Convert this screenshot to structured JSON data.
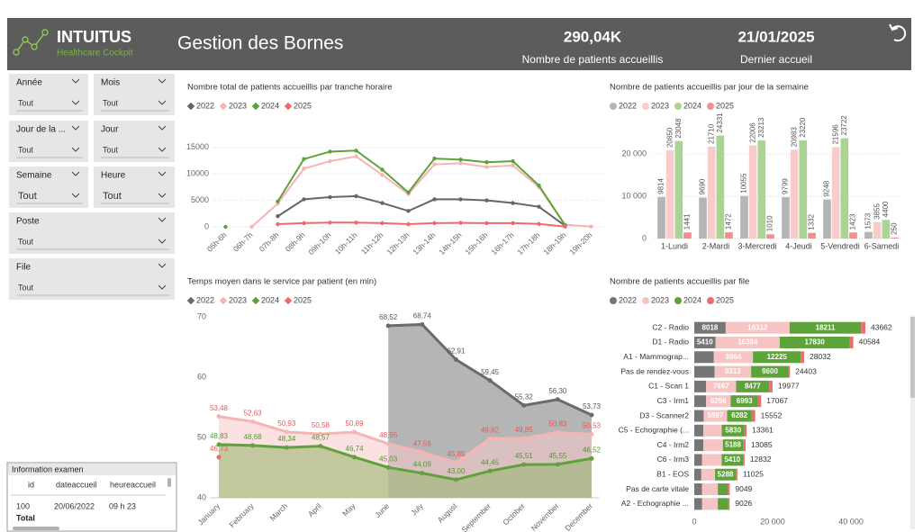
{
  "header": {
    "brand": "INTUITUS",
    "tagline": "Healthcare Cockpit",
    "title": "Gestion des Bornes",
    "kpis": [
      {
        "value": "290,04K",
        "label": "Nombre de patients accueillis"
      },
      {
        "value": "21/01/2025",
        "label": "Dernier accueil"
      }
    ]
  },
  "filters": [
    {
      "label": "Année",
      "value": "Tout"
    },
    {
      "label": "Mois",
      "value": "Tout"
    },
    {
      "label": "Jour de la ...",
      "value": "Tout"
    },
    {
      "label": "Jour",
      "value": "Tout"
    },
    {
      "label": "Semaine",
      "value": "Tout"
    },
    {
      "label": "Heure",
      "value": "Tout"
    },
    {
      "label": "Poste",
      "value": "Tout"
    },
    {
      "label": "File",
      "value": "Tout"
    }
  ],
  "table": {
    "title": "Information examen",
    "columns": [
      "id",
      "dateaccueil",
      "heureaccueil"
    ],
    "rows": [
      [
        "100",
        "20/06/2022",
        "09 h 23"
      ]
    ],
    "total": "Total"
  },
  "chart_data": [
    {
      "type": "line",
      "title": "Nombre total de patients accueillis par tranche horaire",
      "categories": [
        "05h-6h",
        "06h-7h",
        "07h-8h",
        "08h-9h",
        "09h-10h",
        "10h-11h",
        "11h-12h",
        "12h-13h",
        "13h-14h",
        "14h-15h",
        "15h-16h",
        "16h-17h",
        "17h-18h",
        "18h-19h",
        "19h-20h"
      ],
      "series": [
        {
          "name": "2022",
          "color": "#666666",
          "values": [
            null,
            null,
            2000,
            5200,
            5600,
            5800,
            4500,
            3000,
            5200,
            5200,
            5000,
            4500,
            3800,
            200,
            null
          ]
        },
        {
          "name": "2023",
          "color": "#f6b5b5",
          "values": [
            null,
            0,
            4400,
            11000,
            12400,
            13300,
            9800,
            6200,
            11800,
            12000,
            11300,
            11600,
            7500,
            400,
            50
          ]
        },
        {
          "name": "2024",
          "color": "#5ea33a",
          "values": [
            0,
            null,
            4800,
            12800,
            14200,
            14400,
            10800,
            6500,
            12900,
            12700,
            12200,
            12400,
            7800,
            300,
            null
          ]
        },
        {
          "name": "2025",
          "color": "#ee6a6a",
          "values": [
            null,
            null,
            500,
            700,
            800,
            800,
            700,
            500,
            700,
            750,
            700,
            700,
            550,
            50,
            null
          ]
        }
      ],
      "ylim": [
        0,
        17000
      ],
      "yticks": [
        0,
        5000,
        10000,
        15000
      ],
      "grid": true
    },
    {
      "type": "column",
      "title": "Nombre de patients accueillis par jour de la semaine",
      "categories": [
        "1-Lundi",
        "2-Mardi",
        "3-Mercredi",
        "4-Jeudi",
        "5-Vendredi",
        "6-Samedi"
      ],
      "series": [
        {
          "name": "2022",
          "color": "#b5b5b5",
          "values": [
            9814,
            9690,
            10055,
            9799,
            9248,
            1573
          ]
        },
        {
          "name": "2023",
          "color": "#f9cccc",
          "values": [
            20850,
            21710,
            22006,
            20983,
            21596,
            3855
          ]
        },
        {
          "name": "2024",
          "color": "#a9d493",
          "values": [
            23048,
            24331,
            23213,
            23220,
            23722,
            4400
          ]
        },
        {
          "name": "2025",
          "color": "#f09090",
          "values": [
            1441,
            1472,
            1010,
            1332,
            1423,
            250
          ]
        }
      ],
      "ylim": [
        0,
        30000
      ],
      "yticks": [
        0,
        {
          "value": 10000,
          "label": "10 000"
        },
        {
          "value": 20000,
          "label": "20 000"
        }
      ],
      "grid": true
    },
    {
      "type": "area",
      "title": "Temps moyen dans le service par patient (en min)",
      "categories": [
        "January",
        "February",
        "March",
        "April",
        "May",
        "June",
        "July",
        "August",
        "September",
        "October",
        "November",
        "December"
      ],
      "series": [
        {
          "name": "2022",
          "color": "#6b6b6b",
          "label_color": "#555555",
          "values": [
            null,
            null,
            null,
            null,
            null,
            68.52,
            68.74,
            62.91,
            59.45,
            55.32,
            56.3,
            53.73
          ],
          "value_labels": [
            null,
            null,
            null,
            null,
            null,
            "68,52",
            "68,74",
            "62,91",
            "59,45",
            "55,32",
            "56,30",
            "53,73"
          ]
        },
        {
          "name": "2023",
          "color": "#f6b5b5",
          "label_color": "#e35a5a",
          "values": [
            53.48,
            52.63,
            50.93,
            50.58,
            50.89,
            48.95,
            47.56,
            45.85,
            49.82,
            49.85,
            50.83,
            50.53
          ],
          "value_labels": [
            "53,48",
            "52,63",
            "50,93",
            "50,58",
            "50,89",
            "48,95",
            "47,56",
            "45,85",
            "49,82",
            "49,85",
            "50,83",
            "50,53"
          ]
        },
        {
          "name": "2024",
          "color": "#5ea33a",
          "label_color": "#4e9a2e",
          "values": [
            48.83,
            48.68,
            48.34,
            48.57,
            46.74,
            45.03,
            44.09,
            43.0,
            44.45,
            45.51,
            45.55,
            46.52
          ],
          "value_labels": [
            "48,83",
            "48,68",
            "48,34",
            "48,57",
            "46,74",
            "45,03",
            "44,09",
            "43,00",
            "44,45",
            "45,51",
            "45,55",
            "46,52"
          ]
        },
        {
          "name": "2025",
          "color": "#ee6a6a",
          "label_color": "#e35a5a",
          "values": [
            46.73,
            null,
            null,
            null,
            null,
            null,
            null,
            null,
            null,
            null,
            null,
            null
          ],
          "value_labels": [
            "46,73",
            null,
            null,
            null,
            null,
            null,
            null,
            null,
            null,
            null,
            null,
            null
          ]
        }
      ],
      "ylim": [
        40,
        70
      ],
      "yticks": [
        40,
        50,
        60,
        70
      ],
      "grid": false
    },
    {
      "type": "bar",
      "title": "Nombre de patients accueillis par file",
      "categories": [
        "C2 - Radio",
        "D1 - Radio",
        "A1 - Mammograp...",
        "Pas de rendez-vous",
        "C1 - Scan 1",
        "C3 - Irm1",
        "D3 - Scanner2",
        "C5 - Echographie (...",
        "C4 - Irm2",
        "C6 - Irm3",
        "B1 - EOS",
        "Pas de carte vitale",
        "A2 - Echographie ..."
      ],
      "series": [
        {
          "name": "2022",
          "color": "#767676",
          "values": [
            8018,
            5410,
            5000,
            5190,
            3000,
            3000,
            2400,
            2300,
            2300,
            2000,
            1800,
            2000,
            2000
          ],
          "value_labels": [
            "8018",
            "5410",
            null,
            null,
            null,
            null,
            null,
            null,
            null,
            null,
            null,
            null,
            null
          ]
        },
        {
          "name": "2023",
          "color": "#f7c4c4",
          "values": [
            16312,
            16384,
            9964,
            9313,
            7667,
            6296,
            5987,
            4700,
            5000,
            5000,
            3500,
            4000,
            4000
          ],
          "value_labels": [
            "16312",
            "16384",
            "9964",
            "9313",
            "7667",
            "6296",
            "5987",
            null,
            null,
            null,
            null,
            null,
            null
          ]
        },
        {
          "name": "2024",
          "color": "#5ea33a",
          "values": [
            18211,
            17830,
            12225,
            9600,
            8477,
            6993,
            6282,
            5830,
            5188,
            5410,
            5288,
            2500,
            2700
          ],
          "value_labels": [
            "18211",
            "17830",
            "12225",
            "9600",
            "8477",
            "6993",
            "6282",
            "5830",
            "5188",
            "5410",
            "5288",
            null,
            null
          ]
        },
        {
          "name": "2025",
          "color": "#e86f6f",
          "values": [
            1121,
            960,
            843,
            300,
            833,
            778,
            883,
            531,
            597,
            422,
            437,
            549,
            326
          ],
          "value_labels": [
            null,
            null,
            null,
            null,
            null,
            null,
            null,
            null,
            null,
            null,
            null,
            null,
            null
          ]
        }
      ],
      "totals": [
        43662,
        40584,
        28032,
        24403,
        19977,
        17067,
        15552,
        13361,
        13085,
        12832,
        11025,
        9049,
        9026
      ],
      "xlim": [
        0,
        54000
      ],
      "xticks": [
        0,
        {
          "value": 20000,
          "label": "20 000"
        },
        {
          "value": 40000,
          "label": "40 000"
        }
      ],
      "grid": false
    }
  ]
}
